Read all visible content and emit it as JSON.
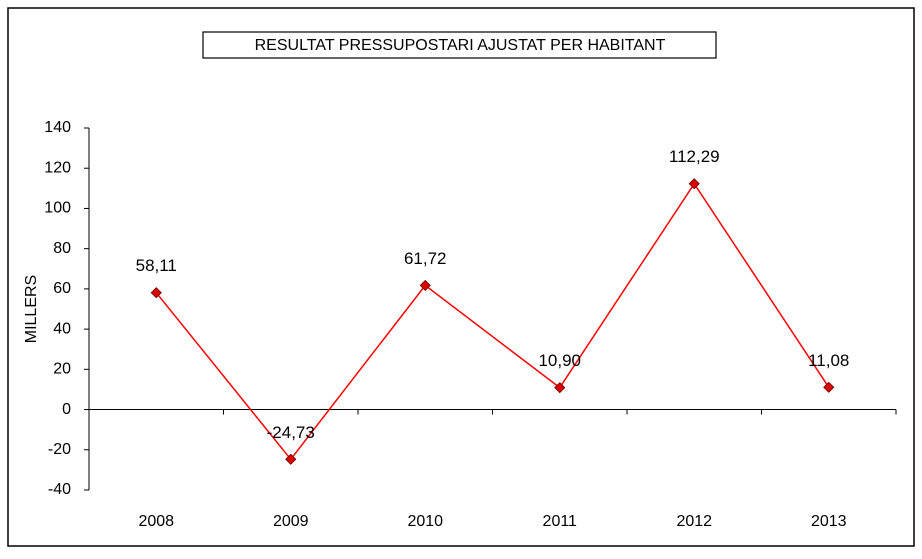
{
  "chart_data": {
    "type": "line",
    "title": "RESULTAT PRESSUPOSTARI AJUSTAT PER HABITANT",
    "y_label": "MILLERS",
    "categories": [
      "2008",
      "2009",
      "2010",
      "2011",
      "2012",
      "2013"
    ],
    "values": [
      58.11,
      -24.73,
      61.72,
      10.9,
      112.29,
      11.08
    ],
    "value_labels": [
      "58,11",
      "-24,73",
      "61,72",
      "10,90",
      "112,29",
      "11,08"
    ],
    "color": "#ff0000",
    "marker_color": "#dd0000",
    "ylim": [
      -40,
      140
    ],
    "yticks": [
      -40,
      -20,
      0,
      20,
      40,
      60,
      80,
      100,
      120,
      140
    ],
    "grid": false
  }
}
